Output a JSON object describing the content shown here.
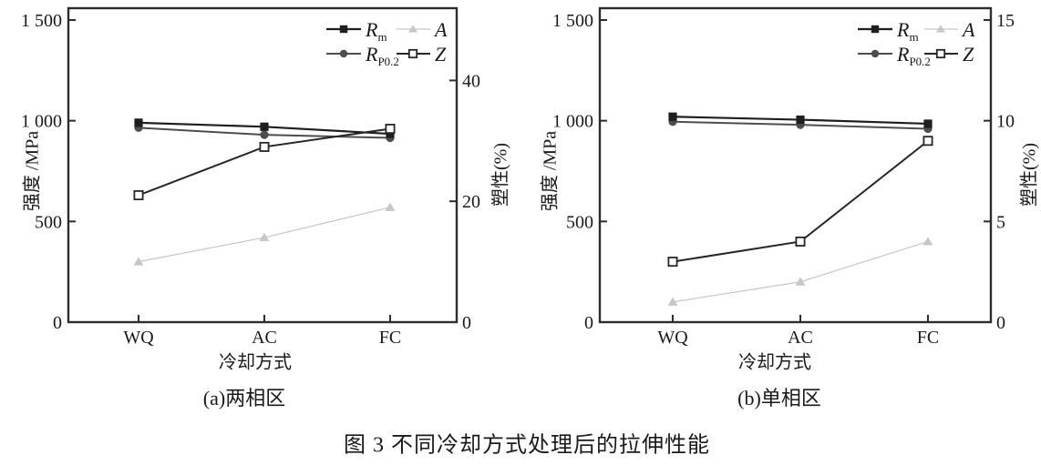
{
  "figure": {
    "caption": "图 3 不同冷却方式处理后的拉伸性能"
  },
  "style": {
    "axis_color": "#2d2d2d",
    "text_color": "#1a1a1a",
    "background": "#ffffff"
  },
  "chart_data": [
    {
      "type": "line",
      "title": "(a)两相区",
      "xlabel": "冷却方式",
      "ylabel_left": "强度 /MPa",
      "ylabel_right": "塑性(%)",
      "categories": [
        "WQ",
        "AC",
        "FC"
      ],
      "grid": false,
      "legend_position": "top-right-inside",
      "left_axis": {
        "tick_values": [
          0,
          500,
          1000,
          1500
        ],
        "tick_labels": [
          "0",
          "500",
          "1 000",
          "1 500"
        ],
        "ylim": [
          0,
          1500
        ]
      },
      "right_axis": {
        "tick_values": [
          0,
          20,
          40
        ],
        "tick_labels": [
          "0",
          "20",
          "40"
        ],
        "ylim": [
          0,
          50
        ]
      },
      "series": [
        {
          "name": "Rm",
          "legend_main": "R",
          "legend_sub": "m",
          "axis": "left",
          "marker": "square",
          "color": "#1e1e1e",
          "line_width": 2.2,
          "values": [
            990,
            970,
            935
          ]
        },
        {
          "name": "RP0.2",
          "legend_main": "R",
          "legend_sub": "P0.2",
          "axis": "left",
          "marker": "circle",
          "color": "#4d4d4d",
          "line_width": 2.0,
          "values": [
            965,
            930,
            915
          ]
        },
        {
          "name": "A",
          "legend_main": "A",
          "legend_sub": "",
          "axis": "right",
          "marker": "triangle",
          "color": "#c6c6c6",
          "line_width": 1.2,
          "values": [
            10,
            14,
            19
          ]
        },
        {
          "name": "Z",
          "legend_main": "Z",
          "legend_sub": "",
          "axis": "right",
          "marker": "open-square",
          "color": "#262626",
          "line_width": 2.0,
          "values": [
            21,
            29,
            32
          ]
        }
      ]
    },
    {
      "type": "line",
      "title": "(b)单相区",
      "xlabel": "冷却方式",
      "ylabel_left": "强度 /MPa",
      "ylabel_right": "塑性(%)",
      "categories": [
        "WQ",
        "AC",
        "FC"
      ],
      "grid": false,
      "legend_position": "top-right-inside",
      "left_axis": {
        "tick_values": [
          0,
          500,
          1000,
          1500
        ],
        "tick_labels": [
          "0",
          "500",
          "1 000",
          "1 500"
        ],
        "ylim": [
          0,
          1500
        ]
      },
      "right_axis": {
        "tick_values": [
          0,
          5,
          10,
          15
        ],
        "tick_labels": [
          "0",
          "5",
          "10",
          "15"
        ],
        "ylim": [
          0,
          15
        ]
      },
      "series": [
        {
          "name": "Rm",
          "legend_main": "R",
          "legend_sub": "m",
          "axis": "left",
          "marker": "square",
          "color": "#1e1e1e",
          "line_width": 2.2,
          "values": [
            1020,
            1005,
            985
          ]
        },
        {
          "name": "RP0.2",
          "legend_main": "R",
          "legend_sub": "P0.2",
          "axis": "left",
          "marker": "circle",
          "color": "#4d4d4d",
          "line_width": 2.0,
          "values": [
            995,
            980,
            960
          ]
        },
        {
          "name": "A",
          "legend_main": "A",
          "legend_sub": "",
          "axis": "right",
          "marker": "triangle",
          "color": "#c6c6c6",
          "line_width": 1.2,
          "values": [
            1,
            2,
            4
          ]
        },
        {
          "name": "Z",
          "legend_main": "Z",
          "legend_sub": "",
          "axis": "right",
          "marker": "open-square",
          "color": "#262626",
          "line_width": 2.0,
          "values": [
            3,
            4,
            9
          ]
        }
      ]
    }
  ]
}
